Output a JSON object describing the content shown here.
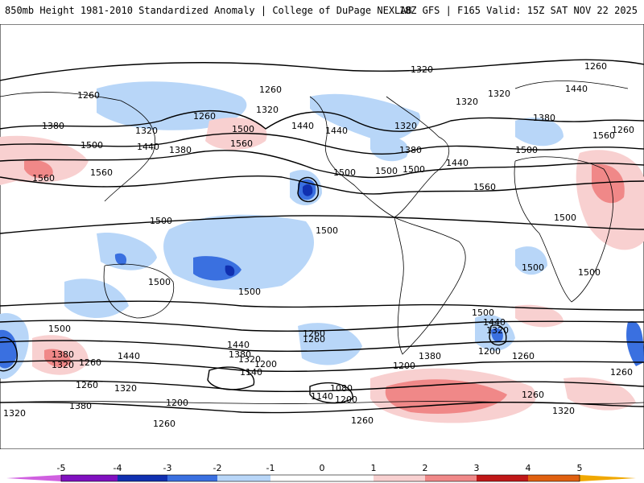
{
  "header": {
    "title": "850mb Height 1981-2010 Standardized Anomaly | College of DuPage NEXLAB",
    "run_info": "18Z GFS | F165 Valid: 15Z SAT NOV 22 2025"
  },
  "colors": {
    "neg5": "#d060e0",
    "neg4": "#8010c0",
    "neg3": "#1030b0",
    "neg2": "#3a70e0",
    "neg1": "#b8d6f8",
    "zero": "#ffffff",
    "pos1": "#f8d0d0",
    "pos2": "#f08888",
    "pos3": "#c01818",
    "pos4": "#e06010",
    "pos5": "#f0a800"
  },
  "colorbar": {
    "ticks": [
      "-5",
      "-4",
      "-3",
      "-2",
      "-1",
      "0",
      "1",
      "2",
      "3",
      "4",
      "5"
    ]
  },
  "contour_labels": [
    {
      "id": "l1",
      "text": "1320"
    },
    {
      "id": "l2",
      "text": "1260"
    },
    {
      "id": "l3",
      "text": "1260"
    },
    {
      "id": "l4",
      "text": "1320"
    },
    {
      "id": "l5",
      "text": "1260"
    },
    {
      "id": "l6",
      "text": "1320"
    },
    {
      "id": "l7",
      "text": "1440"
    },
    {
      "id": "l8",
      "text": "1380"
    },
    {
      "id": "l9",
      "text": "1320"
    },
    {
      "id": "l10",
      "text": "1260"
    },
    {
      "id": "l11",
      "text": "1380"
    },
    {
      "id": "l12",
      "text": "1500"
    },
    {
      "id": "l13",
      "text": "1440"
    },
    {
      "id": "l14",
      "text": "1500"
    },
    {
      "id": "l15",
      "text": "1560"
    },
    {
      "id": "l16",
      "text": "1440"
    },
    {
      "id": "l17",
      "text": "1320"
    },
    {
      "id": "l18",
      "text": "1380"
    },
    {
      "id": "l19",
      "text": "1320"
    },
    {
      "id": "l20",
      "text": "1260"
    },
    {
      "id": "l21",
      "text": "1440"
    },
    {
      "id": "l22",
      "text": "1380"
    },
    {
      "id": "l23",
      "text": "1500"
    },
    {
      "id": "l24",
      "text": "1560"
    },
    {
      "id": "l25",
      "text": "1560"
    },
    {
      "id": "l26",
      "text": "1560"
    },
    {
      "id": "l27",
      "text": "1500"
    },
    {
      "id": "l28",
      "text": "1440"
    },
    {
      "id": "l29",
      "text": "1560"
    },
    {
      "id": "l30",
      "text": "1500"
    },
    {
      "id": "l31",
      "text": "1500"
    },
    {
      "id": "l32",
      "text": "1500"
    },
    {
      "id": "l33",
      "text": "1500"
    },
    {
      "id": "l34",
      "text": "1500"
    },
    {
      "id": "l35",
      "text": "1500"
    },
    {
      "id": "l36",
      "text": "1500"
    },
    {
      "id": "l37",
      "text": "1500"
    },
    {
      "id": "l38",
      "text": "1500"
    },
    {
      "id": "l39",
      "text": "1440"
    },
    {
      "id": "l40",
      "text": "1380"
    },
    {
      "id": "l41",
      "text": "1320"
    },
    {
      "id": "l42",
      "text": "1260"
    },
    {
      "id": "l43",
      "text": "1440"
    },
    {
      "id": "l44",
      "text": "1380"
    },
    {
      "id": "l45",
      "text": "1320"
    },
    {
      "id": "l46",
      "text": "1260"
    },
    {
      "id": "l47",
      "text": "1200"
    },
    {
      "id": "l48",
      "text": "1140"
    },
    {
      "id": "l49",
      "text": "1260"
    },
    {
      "id": "l50",
      "text": "1080"
    },
    {
      "id": "l51",
      "text": "1140"
    },
    {
      "id": "l52",
      "text": "1200"
    },
    {
      "id": "l53",
      "text": "1320"
    },
    {
      "id": "l54",
      "text": "1380"
    },
    {
      "id": "l55",
      "text": "1260"
    },
    {
      "id": "l56",
      "text": "1200"
    },
    {
      "id": "l57",
      "text": "1500"
    },
    {
      "id": "l58",
      "text": "1440"
    },
    {
      "id": "l59",
      "text": "1320"
    },
    {
      "id": "l60",
      "text": "1200"
    },
    {
      "id": "l61",
      "text": "1260"
    },
    {
      "id": "l62",
      "text": "1260"
    },
    {
      "id": "l63",
      "text": "1320"
    },
    {
      "id": "l64",
      "text": "1260"
    },
    {
      "id": "l65",
      "text": "1260"
    },
    {
      "id": "l66",
      "text": "1320"
    },
    {
      "id": "l67",
      "text": "1380"
    },
    {
      "id": "l68",
      "text": "1200"
    },
    {
      "id": "l69",
      "text": "1260"
    },
    {
      "id": "l70",
      "text": "1500"
    }
  ]
}
